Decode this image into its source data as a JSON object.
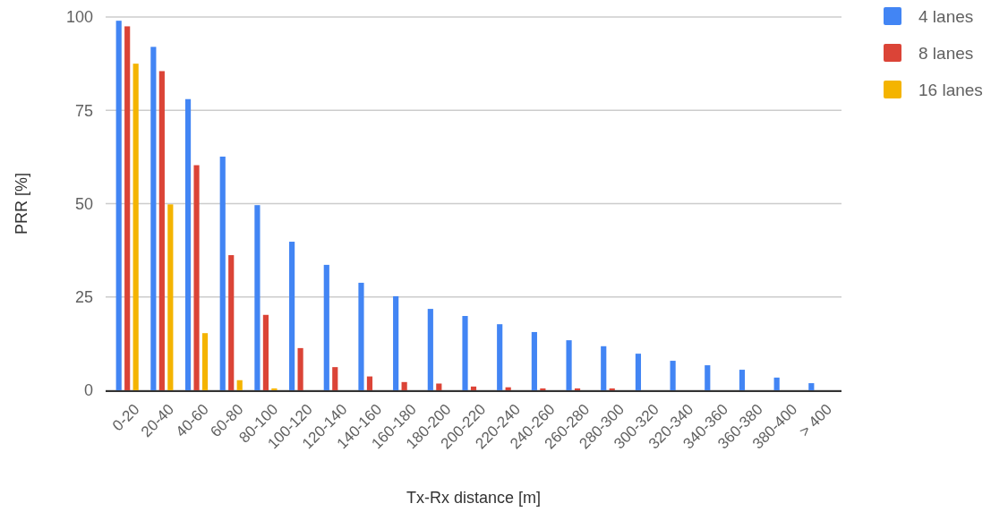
{
  "chart_data": {
    "type": "bar",
    "xlabel": "Tx-Rx distance [m]",
    "ylabel": "PRR [%]",
    "categories": [
      "0-20",
      "20-40",
      "40-60",
      "60-80",
      "80-100",
      "100-120",
      "120-140",
      "140-160",
      "160-180",
      "180-200",
      "200-220",
      "220-240",
      "240-260",
      "260-280",
      "280-300",
      "300-320",
      "320-340",
      "340-360",
      "360-380",
      "380-400",
      "> 400"
    ],
    "series": [
      {
        "name": "4 lanes",
        "color": "#4285f4",
        "values": [
          99,
          92,
          78,
          62.6,
          49.6,
          39.8,
          33.6,
          28.8,
          25.2,
          21.8,
          19.9,
          17.7,
          15.6,
          13.4,
          11.8,
          9.8,
          7.9,
          6.7,
          5.5,
          3.4,
          1.9
        ]
      },
      {
        "name": "8 lanes",
        "color": "#db4437",
        "values": [
          97.5,
          85.5,
          60.3,
          36.2,
          20.2,
          11.3,
          6.2,
          3.7,
          2.2,
          1.8,
          1.0,
          0.8,
          0.5,
          0.5,
          0.5,
          0,
          0,
          0,
          0,
          0,
          0
        ]
      },
      {
        "name": "16 lanes",
        "color": "#f4b400",
        "values": [
          87.5,
          49.8,
          15.3,
          2.7,
          0.5,
          0,
          0,
          0,
          0,
          0,
          0,
          0,
          0,
          0,
          0,
          0,
          0,
          0,
          0,
          0,
          0
        ]
      }
    ],
    "ylim": [
      0,
      100
    ],
    "yticks": [
      0,
      25,
      50,
      75,
      100
    ],
    "grid": "y",
    "legend": "top right"
  }
}
